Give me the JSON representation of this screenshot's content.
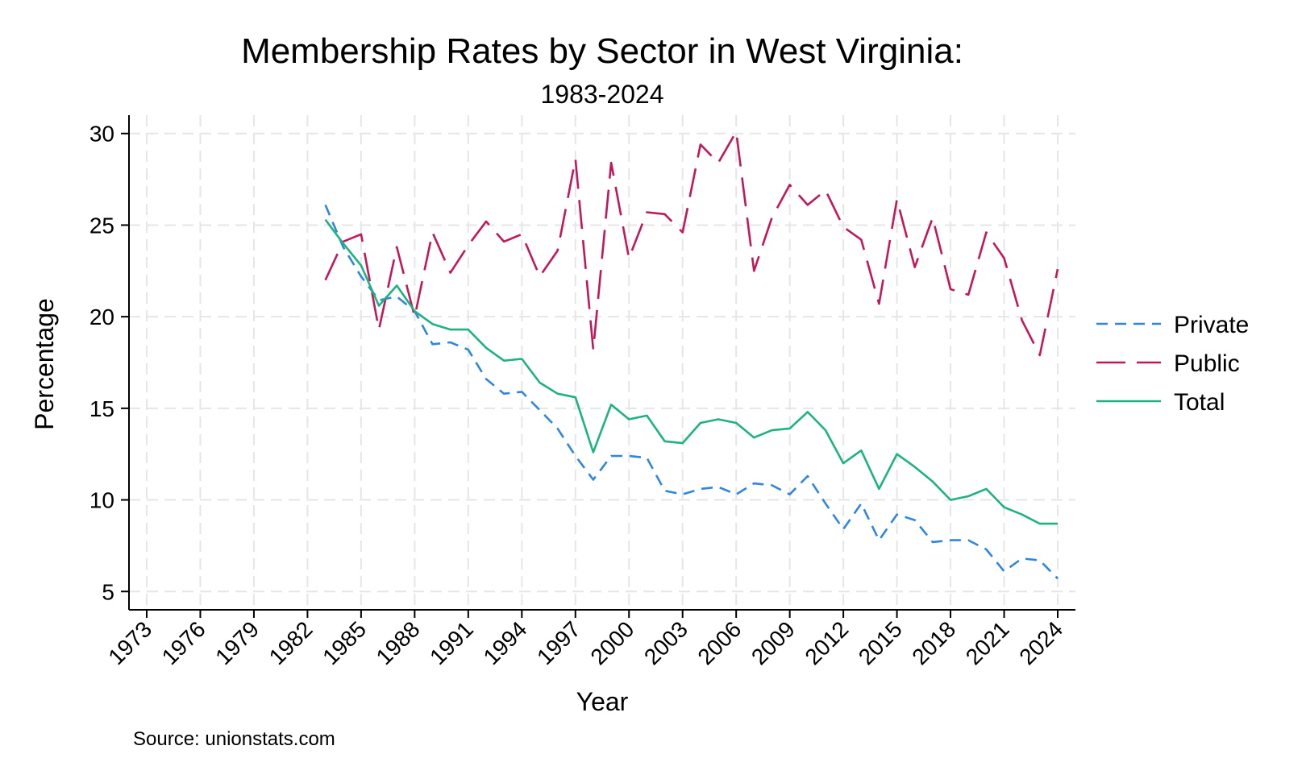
{
  "chart_data": {
    "type": "line",
    "title": "Membership Rates by Sector in West Virginia:",
    "subtitle": "1983-2024",
    "xlabel": "Year",
    "ylabel": "Percentage",
    "source": "Source: unionstats.com",
    "xlim": [
      1973,
      2024
    ],
    "ylim": [
      4,
      31
    ],
    "x_ticks": [
      1973,
      1976,
      1979,
      1982,
      1985,
      1988,
      1991,
      1994,
      1997,
      2000,
      2003,
      2006,
      2009,
      2012,
      2015,
      2018,
      2021,
      2024
    ],
    "y_ticks": [
      5,
      10,
      15,
      20,
      25,
      30
    ],
    "grid": true,
    "legend_position": "right",
    "x": [
      1983,
      1984,
      1985,
      1986,
      1987,
      1988,
      1989,
      1990,
      1991,
      1992,
      1993,
      1994,
      1995,
      1996,
      1997,
      1998,
      1999,
      2000,
      2001,
      2002,
      2003,
      2004,
      2005,
      2006,
      2007,
      2008,
      2009,
      2010,
      2011,
      2012,
      2013,
      2014,
      2015,
      2016,
      2017,
      2018,
      2019,
      2020,
      2021,
      2022,
      2023,
      2024
    ],
    "series": [
      {
        "name": "Private",
        "color": "#2e86de",
        "dash": "short",
        "values": [
          26.1,
          23.8,
          22.2,
          20.9,
          21.1,
          20.3,
          18.5,
          18.6,
          18.2,
          16.6,
          15.8,
          15.9,
          14.9,
          13.9,
          12.4,
          11.1,
          12.4,
          12.4,
          12.3,
          10.5,
          10.3,
          10.6,
          10.7,
          10.3,
          10.9,
          10.8,
          10.3,
          11.3,
          9.8,
          8.4,
          9.8,
          7.8,
          9.2,
          8.9,
          7.7,
          7.8,
          7.8,
          7.3,
          6.1,
          6.8,
          6.7,
          5.7
        ]
      },
      {
        "name": "Public",
        "color": "#c2185b",
        "dash": "long",
        "values": [
          22.0,
          24.1,
          24.5,
          19.3,
          23.8,
          20.0,
          24.6,
          22.4,
          23.9,
          25.2,
          24.1,
          24.5,
          22.2,
          23.6,
          28.6,
          18.2,
          28.4,
          23.2,
          25.7,
          25.6,
          24.6,
          29.4,
          28.4,
          30.1,
          22.5,
          25.4,
          27.2,
          26.1,
          26.9,
          24.9,
          24.2,
          20.7,
          26.4,
          22.7,
          25.4,
          21.5,
          21.2,
          24.6,
          23.2,
          19.8,
          17.9,
          22.6
        ]
      },
      {
        "name": "Total",
        "color": "#1db380",
        "dash": "solid",
        "values": [
          25.3,
          24.0,
          22.8,
          20.6,
          21.7,
          20.3,
          19.6,
          19.3,
          19.3,
          18.3,
          17.6,
          17.7,
          16.4,
          15.8,
          15.6,
          12.6,
          15.2,
          14.4,
          14.6,
          13.2,
          13.1,
          14.2,
          14.4,
          14.2,
          13.4,
          13.8,
          13.9,
          14.8,
          13.8,
          12.0,
          12.7,
          10.6,
          12.5,
          11.8,
          11.0,
          10.0,
          10.2,
          10.6,
          9.6,
          9.2,
          8.7,
          8.7
        ]
      }
    ]
  }
}
